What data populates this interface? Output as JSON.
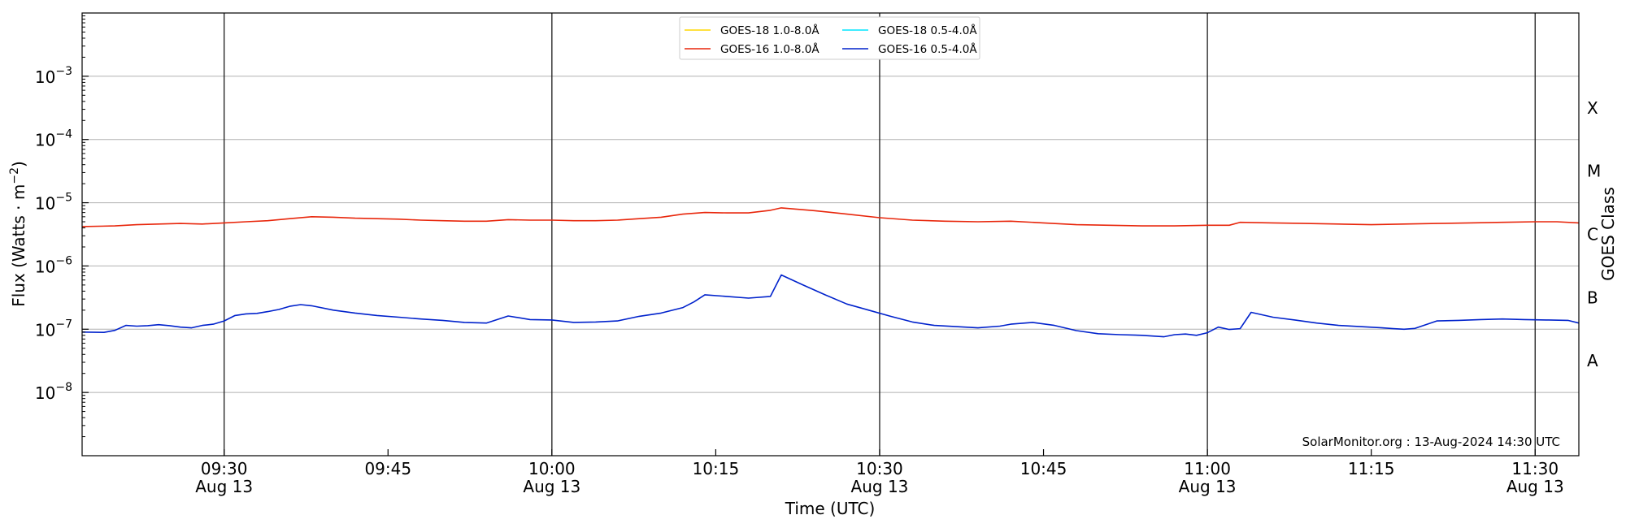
{
  "chart_data": {
    "type": "line",
    "xlabel": "Time (UTC)",
    "ylabel_prefix": "Flux (Watts · m",
    "ylabel_exp": "−2",
    "ylabel_suffix": ")",
    "right_label": "GOES Class",
    "y_scale": "log",
    "ylim": [
      1e-09,
      0.01
    ],
    "xlim": [
      "09:17",
      "11:34"
    ],
    "grid": "horizontal",
    "legend_placement": "top-center",
    "credit": "SolarMonitor.org : 13-Aug-2024 14:30 UTC",
    "y_ticks": [
      {
        "base": "10",
        "exp": "−8",
        "value": 1e-08
      },
      {
        "base": "10",
        "exp": "−7",
        "value": 1e-07
      },
      {
        "base": "10",
        "exp": "−6",
        "value": 1e-06
      },
      {
        "base": "10",
        "exp": "−5",
        "value": 1e-05
      },
      {
        "base": "10",
        "exp": "−4",
        "value": 0.0001
      },
      {
        "base": "10",
        "exp": "−3",
        "value": 0.001
      }
    ],
    "x_ticks": [
      {
        "time": "09:30",
        "label": "09:30",
        "date": "Aug 13",
        "day_line": true
      },
      {
        "time": "09:45",
        "label": "09:45",
        "date": "",
        "day_line": false
      },
      {
        "time": "10:00",
        "label": "10:00",
        "date": "Aug 13",
        "day_line": true
      },
      {
        "time": "10:15",
        "label": "10:15",
        "date": "",
        "day_line": false
      },
      {
        "time": "10:30",
        "label": "10:30",
        "date": "Aug 13",
        "day_line": true
      },
      {
        "time": "10:45",
        "label": "10:45",
        "date": "",
        "day_line": false
      },
      {
        "time": "11:00",
        "label": "11:00",
        "date": "Aug 13",
        "day_line": true
      },
      {
        "time": "11:15",
        "label": "11:15",
        "date": "",
        "day_line": false
      },
      {
        "time": "11:30",
        "label": "11:30",
        "date": "Aug 13",
        "day_line": true
      }
    ],
    "goes_classes": [
      {
        "label": "A",
        "value": 3.16e-08
      },
      {
        "label": "B",
        "value": 3.16e-07
      },
      {
        "label": "C",
        "value": 3.16e-06
      },
      {
        "label": "M",
        "value": 3.16e-05
      },
      {
        "label": "X",
        "value": 0.000316
      }
    ],
    "series": [
      {
        "name": "GOES-18 1.0-8.0Å",
        "color": "#ffd700",
        "x": [],
        "y": []
      },
      {
        "name": "GOES-16 1.0-8.0Å",
        "color": "#e8260b",
        "x": [
          "09:17",
          "09:20",
          "09:22",
          "09:24",
          "09:26",
          "09:28",
          "09:30",
          "09:32",
          "09:34",
          "09:36",
          "09:38",
          "09:40",
          "09:42",
          "09:44",
          "09:46",
          "09:48",
          "09:50",
          "09:52",
          "09:54",
          "09:56",
          "09:58",
          "10:00",
          "10:02",
          "10:04",
          "10:06",
          "10:08",
          "10:10",
          "10:12",
          "10:14",
          "10:16",
          "10:18",
          "10:20",
          "10:21",
          "10:24",
          "10:27",
          "10:30",
          "10:33",
          "10:36",
          "10:39",
          "10:42",
          "10:45",
          "10:48",
          "10:51",
          "10:54",
          "10:57",
          "11:00",
          "11:02",
          "11:03",
          "11:06",
          "11:09",
          "11:12",
          "11:15",
          "11:18",
          "11:21",
          "11:24",
          "11:27",
          "11:30",
          "11:32",
          "11:34"
        ],
        "y": [
          4.2e-06,
          4.3e-06,
          4.5e-06,
          4.6e-06,
          4.7e-06,
          4.6e-06,
          4.8e-06,
          5e-06,
          5.2e-06,
          5.6e-06,
          6e-06,
          5.9e-06,
          5.7e-06,
          5.6e-06,
          5.5e-06,
          5.3e-06,
          5.2e-06,
          5.1e-06,
          5.1e-06,
          5.4e-06,
          5.3e-06,
          5.3e-06,
          5.2e-06,
          5.2e-06,
          5.3e-06,
          5.6e-06,
          5.9e-06,
          6.6e-06,
          7e-06,
          6.9e-06,
          6.9e-06,
          7.6e-06,
          8.3e-06,
          7.5e-06,
          6.6e-06,
          5.8e-06,
          5.3e-06,
          5.1e-06,
          5e-06,
          5.1e-06,
          4.8e-06,
          4.5e-06,
          4.4e-06,
          4.3e-06,
          4.3e-06,
          4.4e-06,
          4.4e-06,
          4.9e-06,
          4.8e-06,
          4.7e-06,
          4.6e-06,
          4.5e-06,
          4.6e-06,
          4.7e-06,
          4.8e-06,
          4.9e-06,
          5e-06,
          5e-06,
          4.8e-06
        ]
      },
      {
        "name": "GOES-18 0.5-4.0Å",
        "color": "#00e5ff",
        "x": [],
        "y": []
      },
      {
        "name": "GOES-16 0.5-4.0Å",
        "color": "#0022cc",
        "x": [
          "09:17",
          "09:19",
          "09:20",
          "09:21",
          "09:22",
          "09:23",
          "09:24",
          "09:25",
          "09:26",
          "09:27",
          "09:28",
          "09:29",
          "09:30",
          "09:31",
          "09:32",
          "09:33",
          "09:34",
          "09:35",
          "09:36",
          "09:37",
          "09:38",
          "09:40",
          "09:42",
          "09:44",
          "09:46",
          "09:48",
          "09:50",
          "09:52",
          "09:54",
          "09:56",
          "09:58",
          "10:00",
          "10:02",
          "10:04",
          "10:06",
          "10:08",
          "10:10",
          "10:12",
          "10:13",
          "10:14",
          "10:16",
          "10:18",
          "10:20",
          "10:21",
          "10:23",
          "10:25",
          "10:27",
          "10:29",
          "10:31",
          "10:33",
          "10:35",
          "10:37",
          "10:39",
          "10:41",
          "10:42",
          "10:44",
          "10:46",
          "10:48",
          "10:50",
          "10:52",
          "10:54",
          "10:56",
          "10:57",
          "10:58",
          "10:59",
          "11:00",
          "11:01",
          "11:02",
          "11:03",
          "11:04",
          "11:06",
          "11:08",
          "11:10",
          "11:12",
          "11:14",
          "11:16",
          "11:17",
          "11:18",
          "11:19",
          "11:21",
          "11:23",
          "11:24",
          "11:25",
          "11:27",
          "11:29",
          "11:31",
          "11:33",
          "11:34"
        ],
        "y": [
          9e-08,
          8.9e-08,
          9.6e-08,
          1.15e-07,
          1.12e-07,
          1.14e-07,
          1.18e-07,
          1.14e-07,
          1.08e-07,
          1.05e-07,
          1.15e-07,
          1.2e-07,
          1.35e-07,
          1.65e-07,
          1.75e-07,
          1.78e-07,
          1.9e-07,
          2.05e-07,
          2.3e-07,
          2.45e-07,
          2.35e-07,
          2e-07,
          1.8e-07,
          1.65e-07,
          1.55e-07,
          1.45e-07,
          1.38e-07,
          1.28e-07,
          1.25e-07,
          1.62e-07,
          1.42e-07,
          1.4e-07,
          1.28e-07,
          1.3e-07,
          1.35e-07,
          1.6e-07,
          1.8e-07,
          2.2e-07,
          2.7e-07,
          3.5e-07,
          3.3e-07,
          3.1e-07,
          3.3e-07,
          7.2e-07,
          5e-07,
          3.5e-07,
          2.5e-07,
          2e-07,
          1.6e-07,
          1.3e-07,
          1.15e-07,
          1.1e-07,
          1.05e-07,
          1.12e-07,
          1.2e-07,
          1.28e-07,
          1.15e-07,
          9.5e-08,
          8.5e-08,
          8.2e-08,
          8e-08,
          7.6e-08,
          8.2e-08,
          8.4e-08,
          8e-08,
          8.8e-08,
          1.08e-07,
          9.9e-08,
          1.02e-07,
          1.85e-07,
          1.55e-07,
          1.4e-07,
          1.25e-07,
          1.15e-07,
          1.1e-07,
          1.05e-07,
          1.02e-07,
          1e-07,
          1.03e-07,
          1.35e-07,
          1.38e-07,
          1.4e-07,
          1.42e-07,
          1.45e-07,
          1.42e-07,
          1.4e-07,
          1.38e-07,
          1.25e-07
        ]
      }
    ]
  }
}
